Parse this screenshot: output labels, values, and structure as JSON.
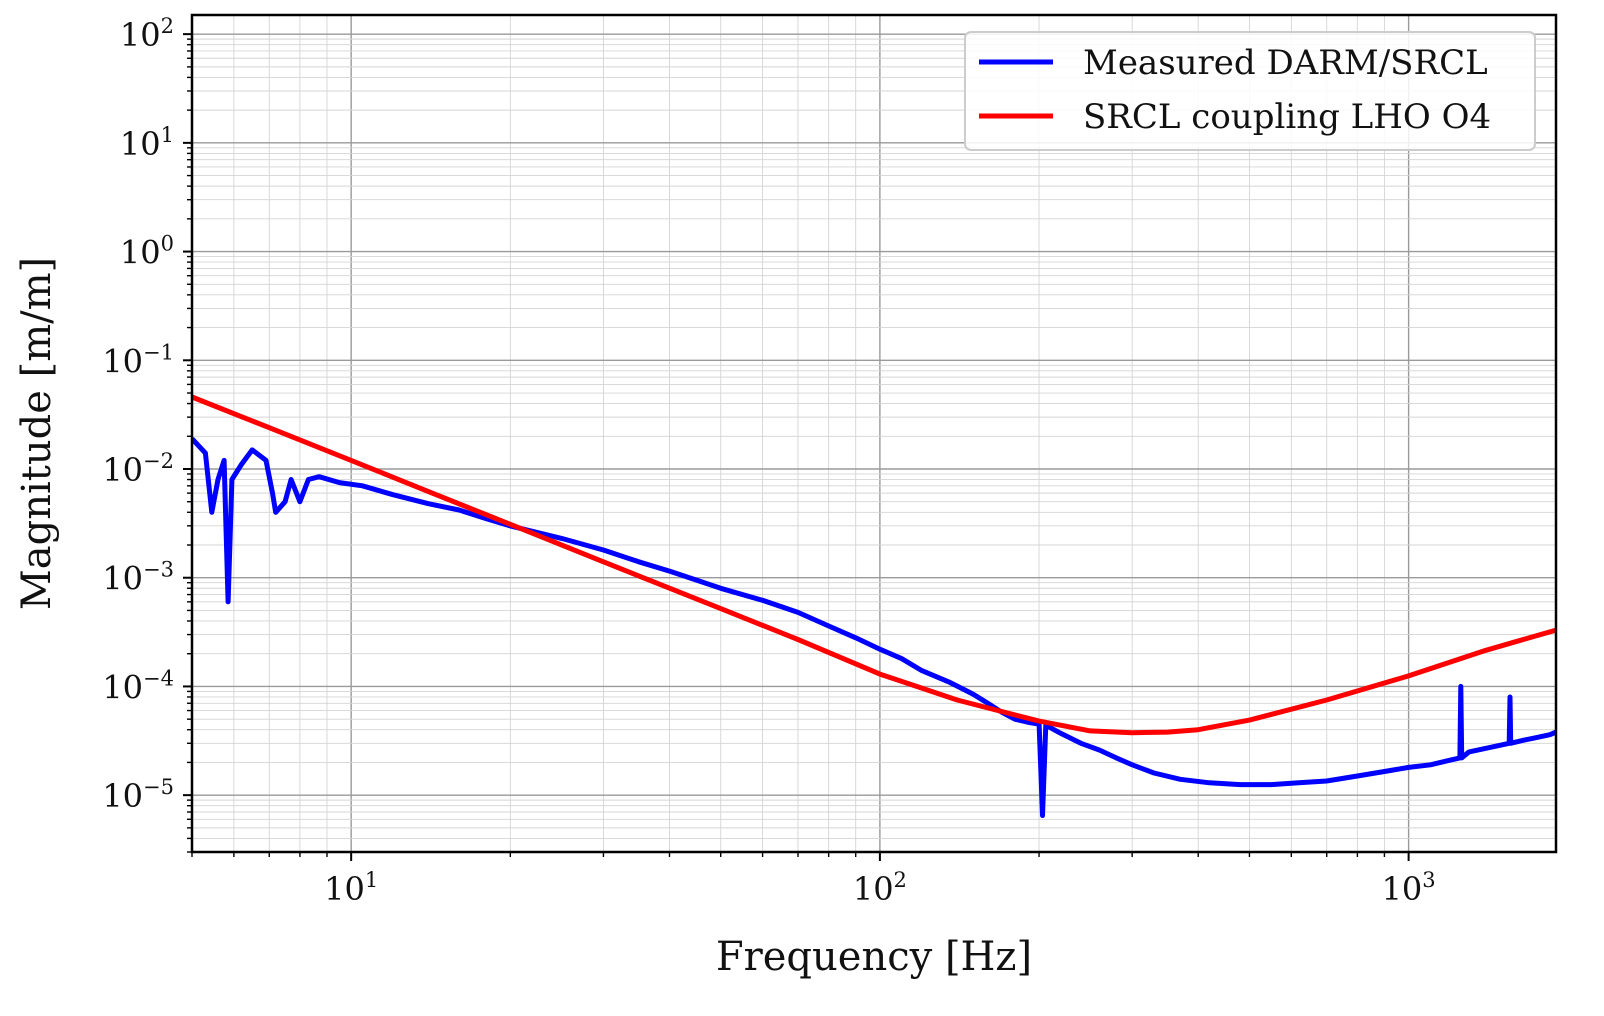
{
  "chart_data": {
    "type": "line",
    "title": "",
    "xlabel": "Frequency [Hz]",
    "ylabel": "Magnitude [m/m]",
    "xscale": "log",
    "yscale": "log",
    "xlim": [
      5,
      1900
    ],
    "ylim": [
      3e-06,
      150
    ],
    "grid": "major and minor",
    "legend_position": "top-right",
    "x_ticks": [
      {
        "value": 10,
        "base": "10",
        "exp": "1"
      },
      {
        "value": 100,
        "base": "10",
        "exp": "2"
      },
      {
        "value": 1000,
        "base": "10",
        "exp": "3"
      }
    ],
    "y_ticks": [
      {
        "value": 1e-05,
        "base": "10",
        "exp": "−5"
      },
      {
        "value": 0.0001,
        "base": "10",
        "exp": "−4"
      },
      {
        "value": 0.001,
        "base": "10",
        "exp": "−3"
      },
      {
        "value": 0.01,
        "base": "10",
        "exp": "−2"
      },
      {
        "value": 0.1,
        "base": "10",
        "exp": "−1"
      },
      {
        "value": 1,
        "base": "10",
        "exp": "0"
      },
      {
        "value": 10,
        "base": "10",
        "exp": "1"
      },
      {
        "value": 100,
        "base": "10",
        "exp": "2"
      }
    ],
    "series": [
      {
        "name": "Measured DARM/SRCL",
        "color": "#0000ff",
        "points": [
          [
            5,
            0.019
          ],
          [
            5.3,
            0.014
          ],
          [
            5.45,
            0.004
          ],
          [
            5.6,
            0.008
          ],
          [
            5.75,
            0.012
          ],
          [
            5.85,
            0.0006
          ],
          [
            5.95,
            0.008
          ],
          [
            6.2,
            0.011
          ],
          [
            6.5,
            0.015
          ],
          [
            6.9,
            0.012
          ],
          [
            7.1,
            0.006
          ],
          [
            7.2,
            0.004
          ],
          [
            7.5,
            0.005
          ],
          [
            7.7,
            0.008
          ],
          [
            8.0,
            0.005
          ],
          [
            8.3,
            0.008
          ],
          [
            8.7,
            0.0085
          ],
          [
            9.5,
            0.0075
          ],
          [
            10.5,
            0.007
          ],
          [
            12,
            0.0058
          ],
          [
            14,
            0.0048
          ],
          [
            16,
            0.0042
          ],
          [
            18,
            0.0035
          ],
          [
            20,
            0.003
          ],
          [
            25,
            0.0023
          ],
          [
            30,
            0.0018
          ],
          [
            35,
            0.0014
          ],
          [
            40,
            0.00115
          ],
          [
            45,
            0.00095
          ],
          [
            50,
            0.0008
          ],
          [
            60,
            0.00062
          ],
          [
            70,
            0.00048
          ],
          [
            80,
            0.00036
          ],
          [
            90,
            0.00028
          ],
          [
            100,
            0.00022
          ],
          [
            110,
            0.00018
          ],
          [
            120,
            0.00014
          ],
          [
            135,
            0.00011
          ],
          [
            150,
            8.5e-05
          ],
          [
            160,
            7e-05
          ],
          [
            170,
            5.8e-05
          ],
          [
            180,
            5e-05
          ],
          [
            190,
            4.7e-05
          ],
          [
            200,
            4.5e-05
          ],
          [
            203,
            6.5e-06
          ],
          [
            206,
            4.4e-05
          ],
          [
            220,
            3.7e-05
          ],
          [
            240,
            3e-05
          ],
          [
            260,
            2.6e-05
          ],
          [
            280,
            2.2e-05
          ],
          [
            300,
            1.9e-05
          ],
          [
            330,
            1.6e-05
          ],
          [
            370,
            1.4e-05
          ],
          [
            420,
            1.3e-05
          ],
          [
            480,
            1.25e-05
          ],
          [
            550,
            1.25e-05
          ],
          [
            620,
            1.3e-05
          ],
          [
            700,
            1.35e-05
          ],
          [
            800,
            1.5e-05
          ],
          [
            900,
            1.65e-05
          ],
          [
            1000,
            1.8e-05
          ],
          [
            1100,
            1.9e-05
          ],
          [
            1200,
            2.1e-05
          ],
          [
            1250,
            2.2e-05
          ],
          [
            1255,
            0.0001
          ],
          [
            1260,
            2.2e-05
          ],
          [
            1300,
            2.5e-05
          ],
          [
            1400,
            2.7e-05
          ],
          [
            1500,
            2.9e-05
          ],
          [
            1550,
            3e-05
          ],
          [
            1555,
            8e-05
          ],
          [
            1560,
            3e-05
          ],
          [
            1650,
            3.2e-05
          ],
          [
            1750,
            3.4e-05
          ],
          [
            1850,
            3.6e-05
          ],
          [
            1900,
            3.8e-05
          ]
        ]
      },
      {
        "name": "SRCL coupling LHO O4",
        "color": "#ff0000",
        "points": [
          [
            5,
            0.046
          ],
          [
            7,
            0.024
          ],
          [
            10,
            0.012
          ],
          [
            14,
            0.0062
          ],
          [
            20,
            0.0031
          ],
          [
            30,
            0.0014
          ],
          [
            50,
            0.00052
          ],
          [
            70,
            0.00027
          ],
          [
            100,
            0.00013
          ],
          [
            140,
            7.5e-05
          ],
          [
            200,
            4.8e-05
          ],
          [
            250,
            3.9e-05
          ],
          [
            300,
            3.75e-05
          ],
          [
            350,
            3.8e-05
          ],
          [
            400,
            4e-05
          ],
          [
            500,
            4.9e-05
          ],
          [
            700,
            7.5e-05
          ],
          [
            1000,
            0.000125
          ],
          [
            1400,
            0.000215
          ],
          [
            1900,
            0.00033
          ]
        ]
      }
    ]
  }
}
